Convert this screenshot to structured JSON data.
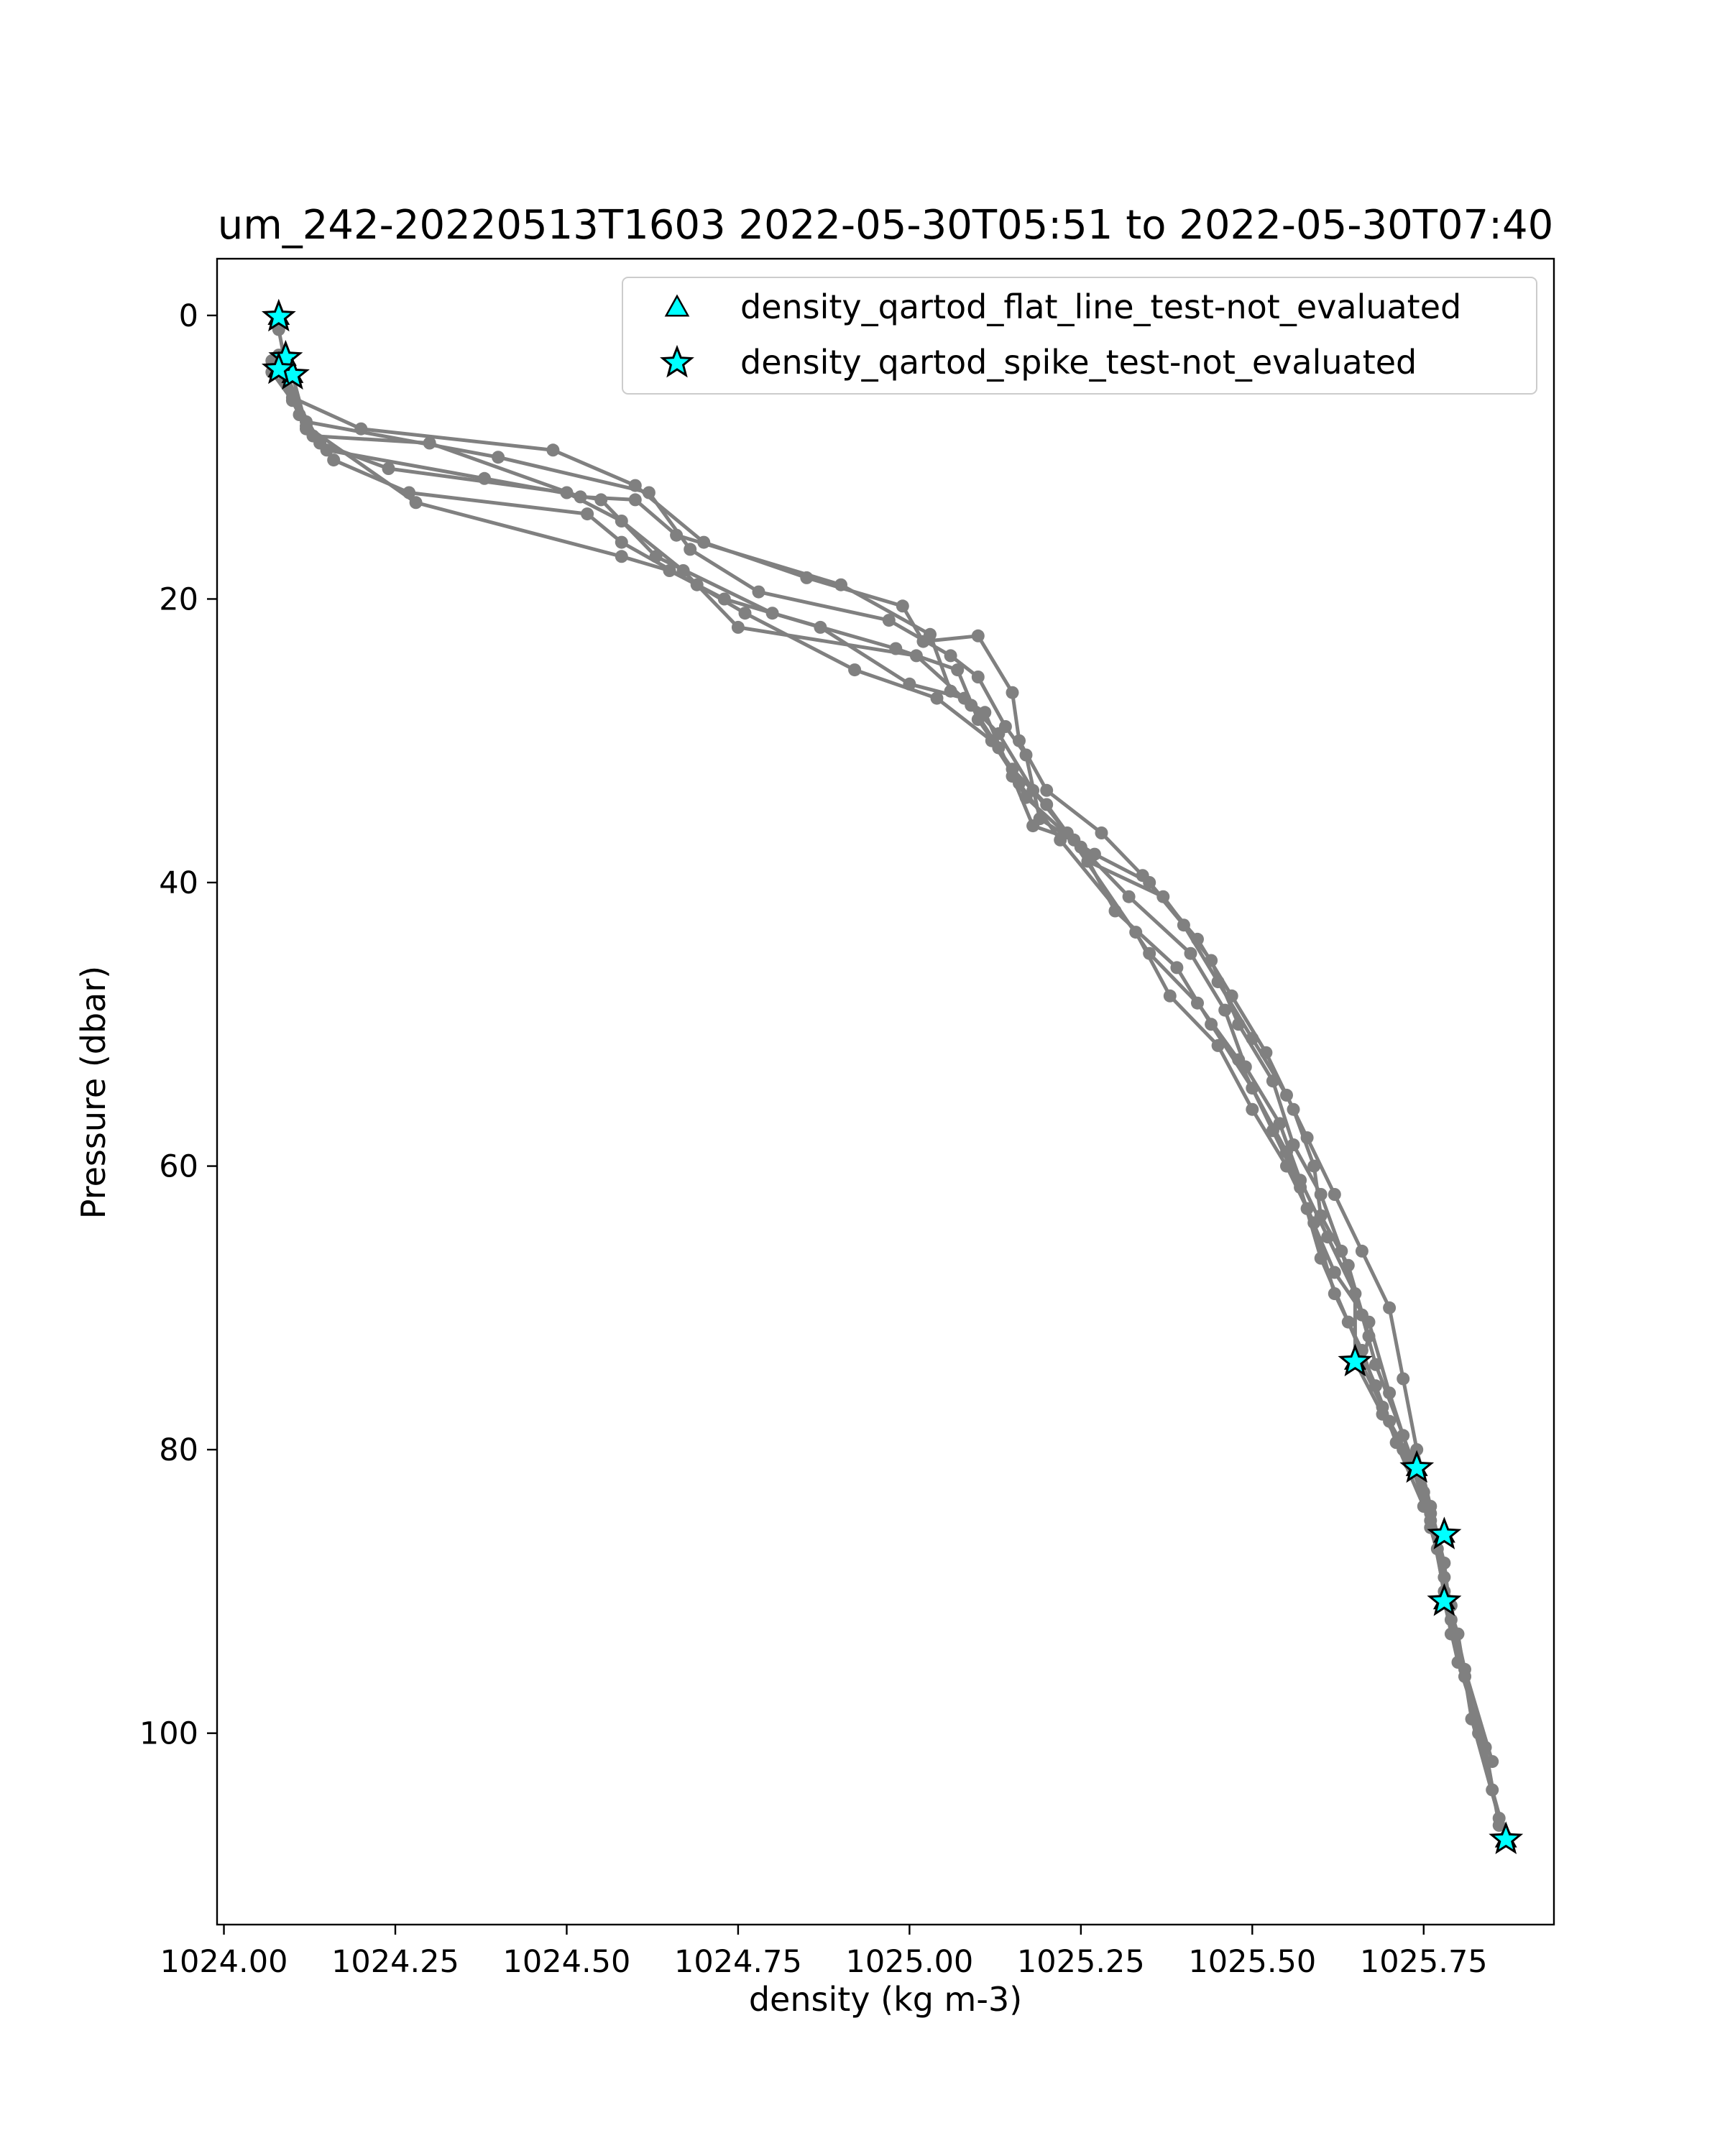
{
  "chart_data": {
    "type": "line",
    "title": "um_242-20220513T1603 2022-05-30T05:51 to 2022-05-30T07:40",
    "xlabel": "density (kg m-3)",
    "ylabel": "Pressure (dbar)",
    "xlim": [
      1023.99,
      1025.94
    ],
    "ylim": [
      113.5,
      -4
    ],
    "y_inverted": true,
    "grid": false,
    "legend_position": "top-right",
    "x_ticks": [
      "1024.00",
      "1024.25",
      "1024.50",
      "1024.75",
      "1025.00",
      "1025.25",
      "1025.50",
      "1025.75"
    ],
    "x_tick_values": [
      1024.0,
      1024.25,
      1024.5,
      1024.75,
      1025.0,
      1025.25,
      1025.5,
      1025.75
    ],
    "y_ticks": [
      "0",
      "20",
      "40",
      "60",
      "80",
      "100"
    ],
    "y_tick_values": [
      0,
      20,
      40,
      60,
      80,
      100
    ],
    "profile_color": "#808080",
    "marker_fill": "#00ffff",
    "marker_edge": "#000000",
    "series": [
      {
        "points": [
          [
            1024.08,
            0.2
          ],
          [
            1024.08,
            1.0
          ],
          [
            1024.09,
            3.5
          ],
          [
            1024.1,
            5.8
          ],
          [
            1024.2,
            8.0
          ],
          [
            1024.48,
            9.5
          ],
          [
            1024.6,
            12.0
          ],
          [
            1024.7,
            16.0
          ],
          [
            1024.85,
            18.5
          ],
          [
            1024.99,
            20.5
          ],
          [
            1025.02,
            23.0
          ],
          [
            1025.1,
            22.6
          ],
          [
            1025.15,
            26.6
          ],
          [
            1025.16,
            30.0
          ],
          [
            1025.2,
            33.5
          ],
          [
            1025.28,
            36.5
          ],
          [
            1025.34,
            39.5
          ],
          [
            1025.4,
            43.0
          ],
          [
            1025.45,
            47.0
          ],
          [
            1025.5,
            51.0
          ],
          [
            1025.55,
            55.0
          ],
          [
            1025.58,
            58.0
          ],
          [
            1025.62,
            62.0
          ],
          [
            1025.66,
            66.0
          ],
          [
            1025.7,
            70.0
          ],
          [
            1025.72,
            75.0
          ],
          [
            1025.74,
            80.0
          ],
          [
            1025.76,
            84.0
          ],
          [
            1025.78,
            88.0
          ],
          [
            1025.79,
            92.0
          ],
          [
            1025.81,
            96.0
          ],
          [
            1025.83,
            100.0
          ],
          [
            1025.85,
            104.0
          ],
          [
            1025.87,
            107.5
          ]
        ]
      },
      {
        "points": [
          [
            1024.08,
            2.8
          ],
          [
            1024.09,
            4.0
          ],
          [
            1024.12,
            7.5
          ],
          [
            1024.4,
            10.0
          ],
          [
            1024.62,
            12.5
          ],
          [
            1024.68,
            16.5
          ],
          [
            1024.78,
            19.5
          ],
          [
            1024.97,
            21.5
          ],
          [
            1025.06,
            24.0
          ],
          [
            1025.1,
            25.5
          ],
          [
            1025.14,
            29.0
          ],
          [
            1025.17,
            31.0
          ],
          [
            1025.19,
            35.5
          ],
          [
            1025.27,
            38.0
          ],
          [
            1025.35,
            40.0
          ],
          [
            1025.42,
            44.0
          ],
          [
            1025.47,
            48.0
          ],
          [
            1025.52,
            52.0
          ],
          [
            1025.56,
            56.0
          ],
          [
            1025.59,
            60.0
          ],
          [
            1025.6,
            63.5
          ],
          [
            1025.64,
            67.0
          ],
          [
            1025.67,
            72.0
          ],
          [
            1025.66,
            74.0
          ],
          [
            1025.7,
            78.0
          ],
          [
            1025.74,
            81.5
          ],
          [
            1025.76,
            85.0
          ],
          [
            1025.78,
            90.0
          ],
          [
            1025.8,
            93.0
          ],
          [
            1025.82,
            99.0
          ],
          [
            1025.86,
            106.0
          ],
          [
            1025.87,
            107.3
          ]
        ]
      },
      {
        "points": [
          [
            1024.07,
            4.0
          ],
          [
            1024.1,
            6.0
          ],
          [
            1024.13,
            8.5
          ],
          [
            1024.3,
            9.0
          ],
          [
            1024.52,
            12.8
          ],
          [
            1024.6,
            13.0
          ],
          [
            1024.66,
            15.5
          ],
          [
            1024.9,
            19.0
          ],
          [
            1025.03,
            22.5
          ],
          [
            1025.06,
            26.5
          ],
          [
            1025.11,
            28.0
          ],
          [
            1025.15,
            32.5
          ],
          [
            1025.18,
            36.0
          ],
          [
            1025.24,
            37.0
          ],
          [
            1025.32,
            41.0
          ],
          [
            1025.41,
            45.0
          ],
          [
            1025.46,
            49.0
          ],
          [
            1025.49,
            53.0
          ],
          [
            1025.54,
            57.0
          ],
          [
            1025.57,
            61.0
          ],
          [
            1025.61,
            65.0
          ],
          [
            1025.65,
            69.0
          ],
          [
            1025.65,
            73.8
          ],
          [
            1025.69,
            77.5
          ],
          [
            1025.72,
            80.0
          ],
          [
            1025.74,
            81.3
          ],
          [
            1025.77,
            86.0
          ],
          [
            1025.78,
            90.7
          ],
          [
            1025.8,
            95.0
          ],
          [
            1025.84,
            101.0
          ],
          [
            1025.86,
            106.5
          ]
        ]
      },
      {
        "points": [
          [
            1024.09,
            4.5
          ],
          [
            1024.12,
            8.0
          ],
          [
            1024.15,
            9.5
          ],
          [
            1024.38,
            11.5
          ],
          [
            1024.55,
            13.0
          ],
          [
            1024.63,
            17.0
          ],
          [
            1024.8,
            21.0
          ],
          [
            1024.98,
            23.5
          ],
          [
            1025.07,
            25.0
          ],
          [
            1025.1,
            28.5
          ],
          [
            1025.15,
            32.0
          ],
          [
            1025.2,
            34.5
          ],
          [
            1025.26,
            38.5
          ],
          [
            1025.37,
            41.0
          ],
          [
            1025.44,
            45.5
          ],
          [
            1025.48,
            50.0
          ],
          [
            1025.53,
            54.0
          ],
          [
            1025.56,
            58.5
          ],
          [
            1025.6,
            62.0
          ],
          [
            1025.63,
            66.0
          ],
          [
            1025.66,
            70.5
          ],
          [
            1025.68,
            74.0
          ],
          [
            1025.72,
            79.0
          ],
          [
            1025.75,
            83.0
          ],
          [
            1025.77,
            87.0
          ],
          [
            1025.79,
            91.0
          ],
          [
            1025.81,
            96.0
          ]
        ]
      },
      {
        "points": [
          [
            1024.09,
            3.7
          ],
          [
            1024.1,
            5.5
          ],
          [
            1024.14,
            9.0
          ],
          [
            1024.24,
            10.8
          ],
          [
            1024.5,
            12.5
          ],
          [
            1024.58,
            14.5
          ],
          [
            1024.67,
            18.0
          ],
          [
            1024.75,
            22.0
          ],
          [
            1025.01,
            24.0
          ],
          [
            1025.09,
            27.5
          ],
          [
            1025.13,
            30.5
          ],
          [
            1025.17,
            34.0
          ],
          [
            1025.25,
            37.5
          ],
          [
            1025.3,
            42.0
          ],
          [
            1025.39,
            46.0
          ],
          [
            1025.44,
            50.0
          ],
          [
            1025.5,
            54.5
          ],
          [
            1025.55,
            59.0
          ],
          [
            1025.58,
            63.0
          ],
          [
            1025.62,
            67.5
          ],
          [
            1025.67,
            71.0
          ],
          [
            1025.7,
            76.0
          ],
          [
            1025.73,
            80.5
          ],
          [
            1025.76,
            85.5
          ],
          [
            1025.78,
            89.0
          ],
          [
            1025.81,
            95.5
          ],
          [
            1025.85,
            102.0
          ]
        ]
      },
      {
        "points": [
          [
            1024.07,
            3.2
          ],
          [
            1024.11,
            7.0
          ],
          [
            1024.16,
            10.2
          ],
          [
            1024.27,
            12.5
          ],
          [
            1024.53,
            14.0
          ],
          [
            1024.58,
            16.0
          ],
          [
            1024.69,
            19.0
          ],
          [
            1024.76,
            21.0
          ],
          [
            1024.92,
            25.0
          ],
          [
            1025.04,
            27.0
          ],
          [
            1025.12,
            30.0
          ],
          [
            1025.16,
            33.0
          ],
          [
            1025.22,
            37.0
          ],
          [
            1025.33,
            43.5
          ],
          [
            1025.38,
            48.0
          ],
          [
            1025.45,
            51.5
          ],
          [
            1025.5,
            56.0
          ],
          [
            1025.55,
            60.0
          ],
          [
            1025.59,
            64.0
          ],
          [
            1025.62,
            69.0
          ],
          [
            1025.66,
            73.0
          ],
          [
            1025.69,
            77.0
          ],
          [
            1025.73,
            81.0
          ],
          [
            1025.76,
            84.5
          ],
          [
            1025.79,
            93.0
          ]
        ]
      },
      {
        "points": [
          [
            1024.1,
            4.2
          ],
          [
            1024.12,
            7.8
          ],
          [
            1024.28,
            13.2
          ],
          [
            1024.58,
            17.0
          ],
          [
            1024.65,
            18.0
          ],
          [
            1024.73,
            20.0
          ],
          [
            1024.87,
            22.0
          ],
          [
            1025.0,
            26.0
          ],
          [
            1025.08,
            27.0
          ],
          [
            1025.13,
            29.5
          ],
          [
            1025.18,
            33.5
          ],
          [
            1025.23,
            36.5
          ],
          [
            1025.35,
            45.0
          ],
          [
            1025.42,
            48.5
          ],
          [
            1025.48,
            52.5
          ],
          [
            1025.53,
            57.5
          ],
          [
            1025.57,
            61.5
          ],
          [
            1025.6,
            66.5
          ],
          [
            1025.64,
            71.0
          ],
          [
            1025.68,
            75.5
          ],
          [
            1025.71,
            79.5
          ],
          [
            1025.75,
            84.0
          ]
        ]
      }
    ],
    "legend": [
      {
        "label": "density_qartod_flat_line_test-not_evaluated",
        "marker": "triangle"
      },
      {
        "label": "density_qartod_spike_test-not_evaluated",
        "marker": "star"
      }
    ],
    "spike_flags": [
      [
        1024.08,
        0.1
      ],
      [
        1024.09,
        3.0
      ],
      [
        1024.1,
        4.2
      ],
      [
        1024.08,
        3.8
      ],
      [
        1025.65,
        73.8
      ],
      [
        1025.74,
        81.3
      ],
      [
        1025.78,
        86.0
      ],
      [
        1025.78,
        90.7
      ],
      [
        1025.87,
        107.5
      ]
    ],
    "flat_line_flags": [
      [
        1024.08,
        0.1
      ],
      [
        1024.09,
        3.0
      ],
      [
        1024.1,
        4.2
      ],
      [
        1024.08,
        3.8
      ],
      [
        1025.65,
        73.8
      ],
      [
        1025.74,
        81.3
      ],
      [
        1025.78,
        86.0
      ],
      [
        1025.78,
        90.7
      ],
      [
        1025.87,
        107.5
      ]
    ]
  }
}
